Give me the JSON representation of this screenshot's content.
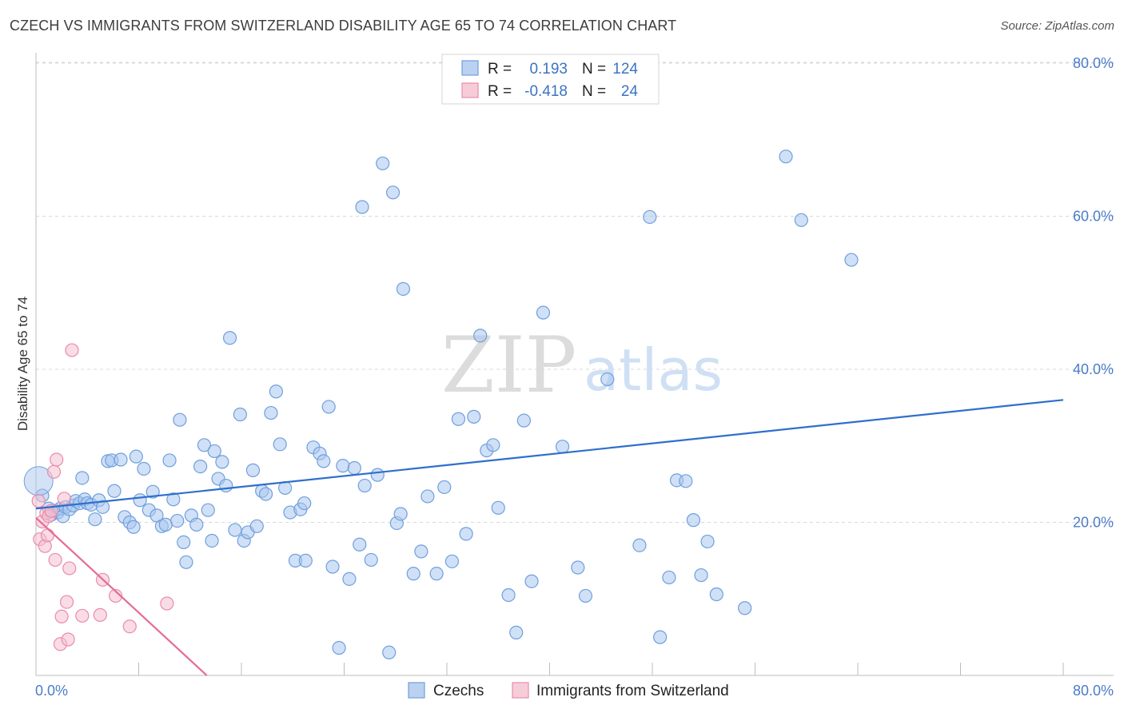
{
  "title": "CZECH VS IMMIGRANTS FROM SWITZERLAND DISABILITY AGE 65 TO 74 CORRELATION CHART",
  "source": "Source: ZipAtlas.com",
  "watermark": {
    "zip": "ZIP",
    "atlas": "atlas"
  },
  "legend_top": {
    "r_label": "R =",
    "n_label": "N =",
    "rows": [
      {
        "r": "0.193",
        "n": "124"
      },
      {
        "r": "-0.418",
        "n": "24"
      }
    ]
  },
  "colors": {
    "czech_fill": "#a9c6ee",
    "czech_stroke": "#6f9fdd",
    "czech_line": "#2f6fcc",
    "swiss_fill": "#f5bfd0",
    "swiss_stroke": "#e98bab",
    "swiss_line": "#e56b97",
    "grid": "#d8d8d8"
  },
  "chart_data": {
    "type": "scatter",
    "ylabel": "Disability Age 65 to 74",
    "x_ticks": [
      "0.0%",
      "80.0%"
    ],
    "y_ticks": [
      "20.0%",
      "40.0%",
      "60.0%",
      "80.0%"
    ],
    "xlim": [
      0,
      80
    ],
    "ylim": [
      0,
      80
    ],
    "grid": true,
    "legend_placement": "bottom",
    "series": [
      {
        "name": "Czechs",
        "trend": [
          [
            0,
            21.8
          ],
          [
            80,
            36.0
          ]
        ],
        "points": [
          [
            0.5,
            23.5
          ],
          [
            1.0,
            21.8
          ],
          [
            1.2,
            21.0
          ],
          [
            1.5,
            21.5
          ],
          [
            1.7,
            21.3
          ],
          [
            1.9,
            21.8
          ],
          [
            2.1,
            20.8
          ],
          [
            2.3,
            22.0
          ],
          [
            2.6,
            21.7
          ],
          [
            2.9,
            22.2
          ],
          [
            3.1,
            22.8
          ],
          [
            3.4,
            22.5
          ],
          [
            3.6,
            25.8
          ],
          [
            3.8,
            23.0
          ],
          [
            4.0,
            22.5
          ],
          [
            4.3,
            22.3
          ],
          [
            4.6,
            20.4
          ],
          [
            4.9,
            22.9
          ],
          [
            5.2,
            22.0
          ],
          [
            5.6,
            28.0
          ],
          [
            5.9,
            28.1
          ],
          [
            6.1,
            24.1
          ],
          [
            6.6,
            28.2
          ],
          [
            6.9,
            20.7
          ],
          [
            7.3,
            20.0
          ],
          [
            7.6,
            19.4
          ],
          [
            7.8,
            28.6
          ],
          [
            8.1,
            22.9
          ],
          [
            8.4,
            27.0
          ],
          [
            8.8,
            21.6
          ],
          [
            9.1,
            24.0
          ],
          [
            9.4,
            20.9
          ],
          [
            9.8,
            19.5
          ],
          [
            10.1,
            19.7
          ],
          [
            10.4,
            28.1
          ],
          [
            10.7,
            23.0
          ],
          [
            11.0,
            20.2
          ],
          [
            11.2,
            33.4
          ],
          [
            11.5,
            17.4
          ],
          [
            11.7,
            14.8
          ],
          [
            12.1,
            20.9
          ],
          [
            12.5,
            19.7
          ],
          [
            12.8,
            27.3
          ],
          [
            13.1,
            30.1
          ],
          [
            13.4,
            21.6
          ],
          [
            13.7,
            17.6
          ],
          [
            13.9,
            29.3
          ],
          [
            14.2,
            25.7
          ],
          [
            14.5,
            27.9
          ],
          [
            14.8,
            24.8
          ],
          [
            15.1,
            44.1
          ],
          [
            15.5,
            19.0
          ],
          [
            15.9,
            34.1
          ],
          [
            16.2,
            17.6
          ],
          [
            16.5,
            18.7
          ],
          [
            16.9,
            26.8
          ],
          [
            17.2,
            19.5
          ],
          [
            17.6,
            24.1
          ],
          [
            17.9,
            23.7
          ],
          [
            18.3,
            34.3
          ],
          [
            18.7,
            37.1
          ],
          [
            19.0,
            30.2
          ],
          [
            19.4,
            24.5
          ],
          [
            19.8,
            21.3
          ],
          [
            20.2,
            15.0
          ],
          [
            20.6,
            21.7
          ],
          [
            21.0,
            15.0
          ],
          [
            21.6,
            29.8
          ],
          [
            22.1,
            29.0
          ],
          [
            22.4,
            28.0
          ],
          [
            22.8,
            35.1
          ],
          [
            23.1,
            14.2
          ],
          [
            23.6,
            3.6
          ],
          [
            23.9,
            27.4
          ],
          [
            24.4,
            12.6
          ],
          [
            24.8,
            27.1
          ],
          [
            25.2,
            17.1
          ],
          [
            25.6,
            24.8
          ],
          [
            26.1,
            15.1
          ],
          [
            26.6,
            26.2
          ],
          [
            27.0,
            66.9
          ],
          [
            27.5,
            3.0
          ],
          [
            27.8,
            63.1
          ],
          [
            28.1,
            19.9
          ],
          [
            28.4,
            21.1
          ],
          [
            28.6,
            50.5
          ],
          [
            29.4,
            13.3
          ],
          [
            30.0,
            16.2
          ],
          [
            30.5,
            23.4
          ],
          [
            31.2,
            13.3
          ],
          [
            31.8,
            24.6
          ],
          [
            32.4,
            14.9
          ],
          [
            32.9,
            33.5
          ],
          [
            33.5,
            18.5
          ],
          [
            34.1,
            33.8
          ],
          [
            34.6,
            44.4
          ],
          [
            35.1,
            29.4
          ],
          [
            35.6,
            30.1
          ],
          [
            36.0,
            21.9
          ],
          [
            36.8,
            10.5
          ],
          [
            37.4,
            5.6
          ],
          [
            38.0,
            33.3
          ],
          [
            38.6,
            12.3
          ],
          [
            39.5,
            47.4
          ],
          [
            41.0,
            29.9
          ],
          [
            42.2,
            14.1
          ],
          [
            42.8,
            10.4
          ],
          [
            44.5,
            38.7
          ],
          [
            47.0,
            17.0
          ],
          [
            47.8,
            59.9
          ],
          [
            48.6,
            5.0
          ],
          [
            49.3,
            12.8
          ],
          [
            49.9,
            25.5
          ],
          [
            50.6,
            25.4
          ],
          [
            51.2,
            20.3
          ],
          [
            51.8,
            13.1
          ],
          [
            52.3,
            17.5
          ],
          [
            53.0,
            10.6
          ],
          [
            55.2,
            8.8
          ],
          [
            58.4,
            67.8
          ],
          [
            59.6,
            59.5
          ],
          [
            63.5,
            54.3
          ],
          [
            25.4,
            61.2
          ],
          [
            20.9,
            22.5
          ]
        ]
      },
      {
        "name": "Immigrants from Switzerland",
        "trend": [
          [
            0,
            20.6
          ],
          [
            13.3,
            0
          ]
        ],
        "points": [
          [
            0.2,
            22.8
          ],
          [
            0.3,
            17.8
          ],
          [
            0.5,
            20.1
          ],
          [
            0.7,
            16.9
          ],
          [
            0.8,
            21.2
          ],
          [
            1.0,
            20.8
          ],
          [
            1.4,
            26.6
          ],
          [
            1.5,
            15.1
          ],
          [
            1.6,
            28.2
          ],
          [
            1.9,
            4.1
          ],
          [
            2.0,
            7.7
          ],
          [
            2.2,
            23.1
          ],
          [
            2.4,
            9.6
          ],
          [
            2.5,
            4.7
          ],
          [
            2.6,
            14.0
          ],
          [
            2.8,
            42.5
          ],
          [
            3.6,
            7.8
          ],
          [
            5.0,
            7.9
          ],
          [
            5.2,
            12.5
          ],
          [
            6.2,
            10.4
          ],
          [
            7.3,
            6.4
          ],
          [
            10.2,
            9.4
          ],
          [
            1.2,
            21.5
          ],
          [
            0.9,
            18.3
          ]
        ]
      }
    ]
  }
}
